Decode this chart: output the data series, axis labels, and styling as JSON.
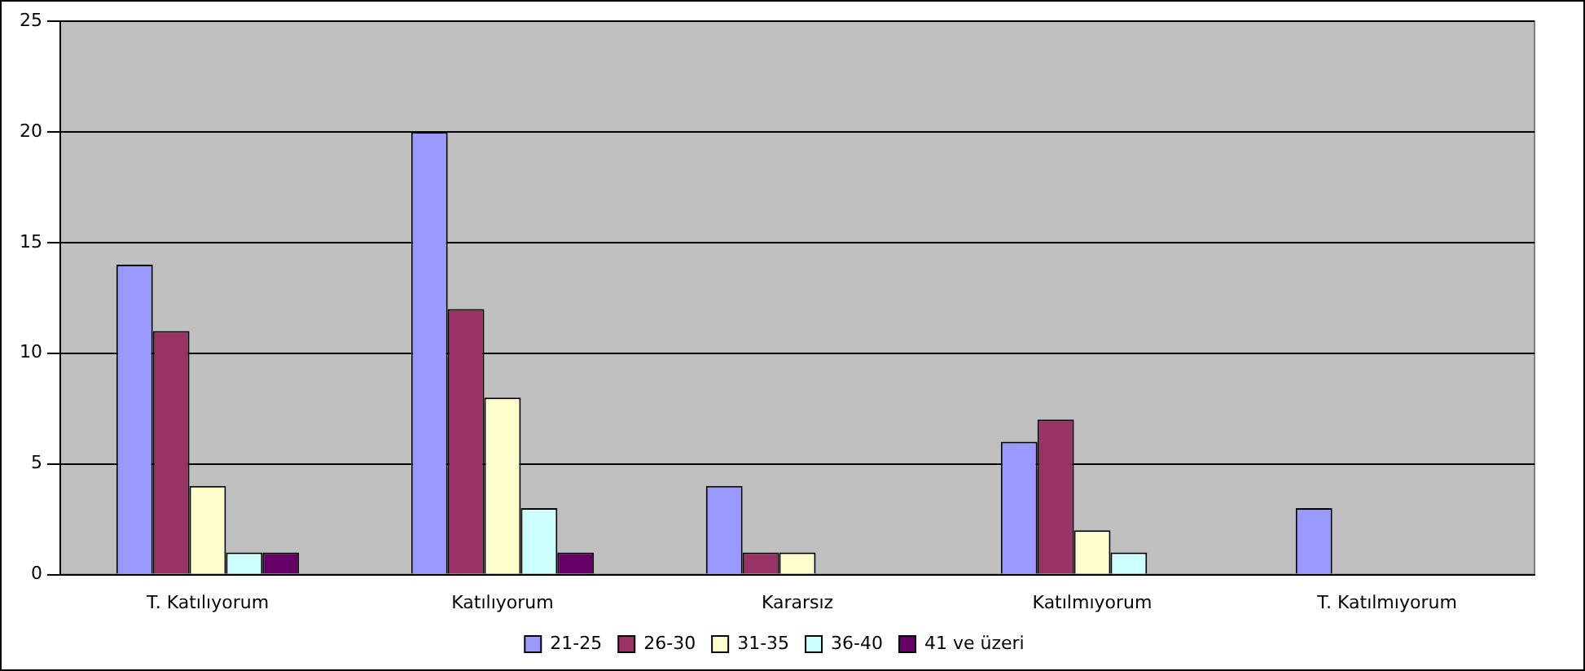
{
  "chart_data": {
    "type": "bar",
    "categories": [
      "T. Katılıyorum",
      "Katılıyorum",
      "Kararsız",
      "Katılmıyorum",
      "T. Katılmıyorum"
    ],
    "series": [
      {
        "name": "21-25",
        "color": "#9999ff",
        "values": [
          14,
          20,
          4,
          6,
          3
        ]
      },
      {
        "name": "26-30",
        "color": "#993366",
        "values": [
          11,
          12,
          1,
          7,
          0
        ]
      },
      {
        "name": "31-35",
        "color": "#ffffcc",
        "values": [
          4,
          8,
          1,
          2,
          0
        ]
      },
      {
        "name": "36-40",
        "color": "#ccffff",
        "values": [
          1,
          3,
          0,
          1,
          0
        ]
      },
      {
        "name": "41 ve üzeri",
        "color": "#660066",
        "values": [
          1,
          1,
          0,
          0,
          0
        ]
      }
    ],
    "ylim": [
      0,
      25
    ],
    "yticks": [
      0,
      5,
      10,
      15,
      20,
      25
    ],
    "grid": "y",
    "legend": "bottom"
  }
}
